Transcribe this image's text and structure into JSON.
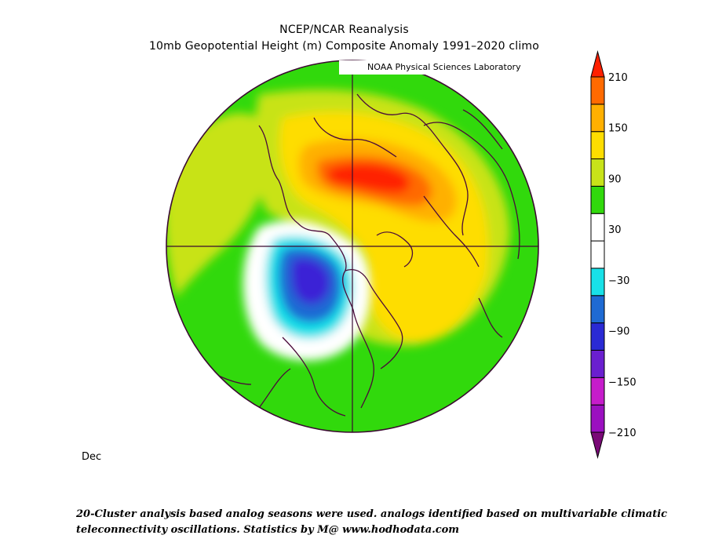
{
  "header": {
    "title_line1": "NCEP/NCAR Reanalysis",
    "title_line2": "10mb Geopotential Height (m) Composite Anomaly 1991–2020 climo",
    "credit": "NOAA Physical Sciences Laboratory"
  },
  "map": {
    "projection": "north-polar-stereographic",
    "month_label": "Dec",
    "colorbar": {
      "tick_labels": [
        "210",
        "150",
        "90",
        "30",
        "−30",
        "−90",
        "−150",
        "−210"
      ],
      "tick_values": [
        210,
        150,
        90,
        30,
        -30,
        -90,
        -150,
        -210
      ],
      "colors": [
        "#7a0a77",
        "#9b10c0",
        "#c61ccb",
        "#6a1fcf",
        "#2a2ad4",
        "#1e6ad3",
        "#18e1e8",
        "#ffffff",
        "#ffffff",
        "#31d90c",
        "#c8e319",
        "#fedd00",
        "#ffb000",
        "#ff6a00",
        "#ff2000"
      ]
    }
  },
  "footer": {
    "line1": "20-Cluster analysis based analog seasons were used. analogs identified based on multivariable climatic",
    "line2": "teleconnectivity oscillations. Statistics by M@ www.hodhodata.com"
  }
}
